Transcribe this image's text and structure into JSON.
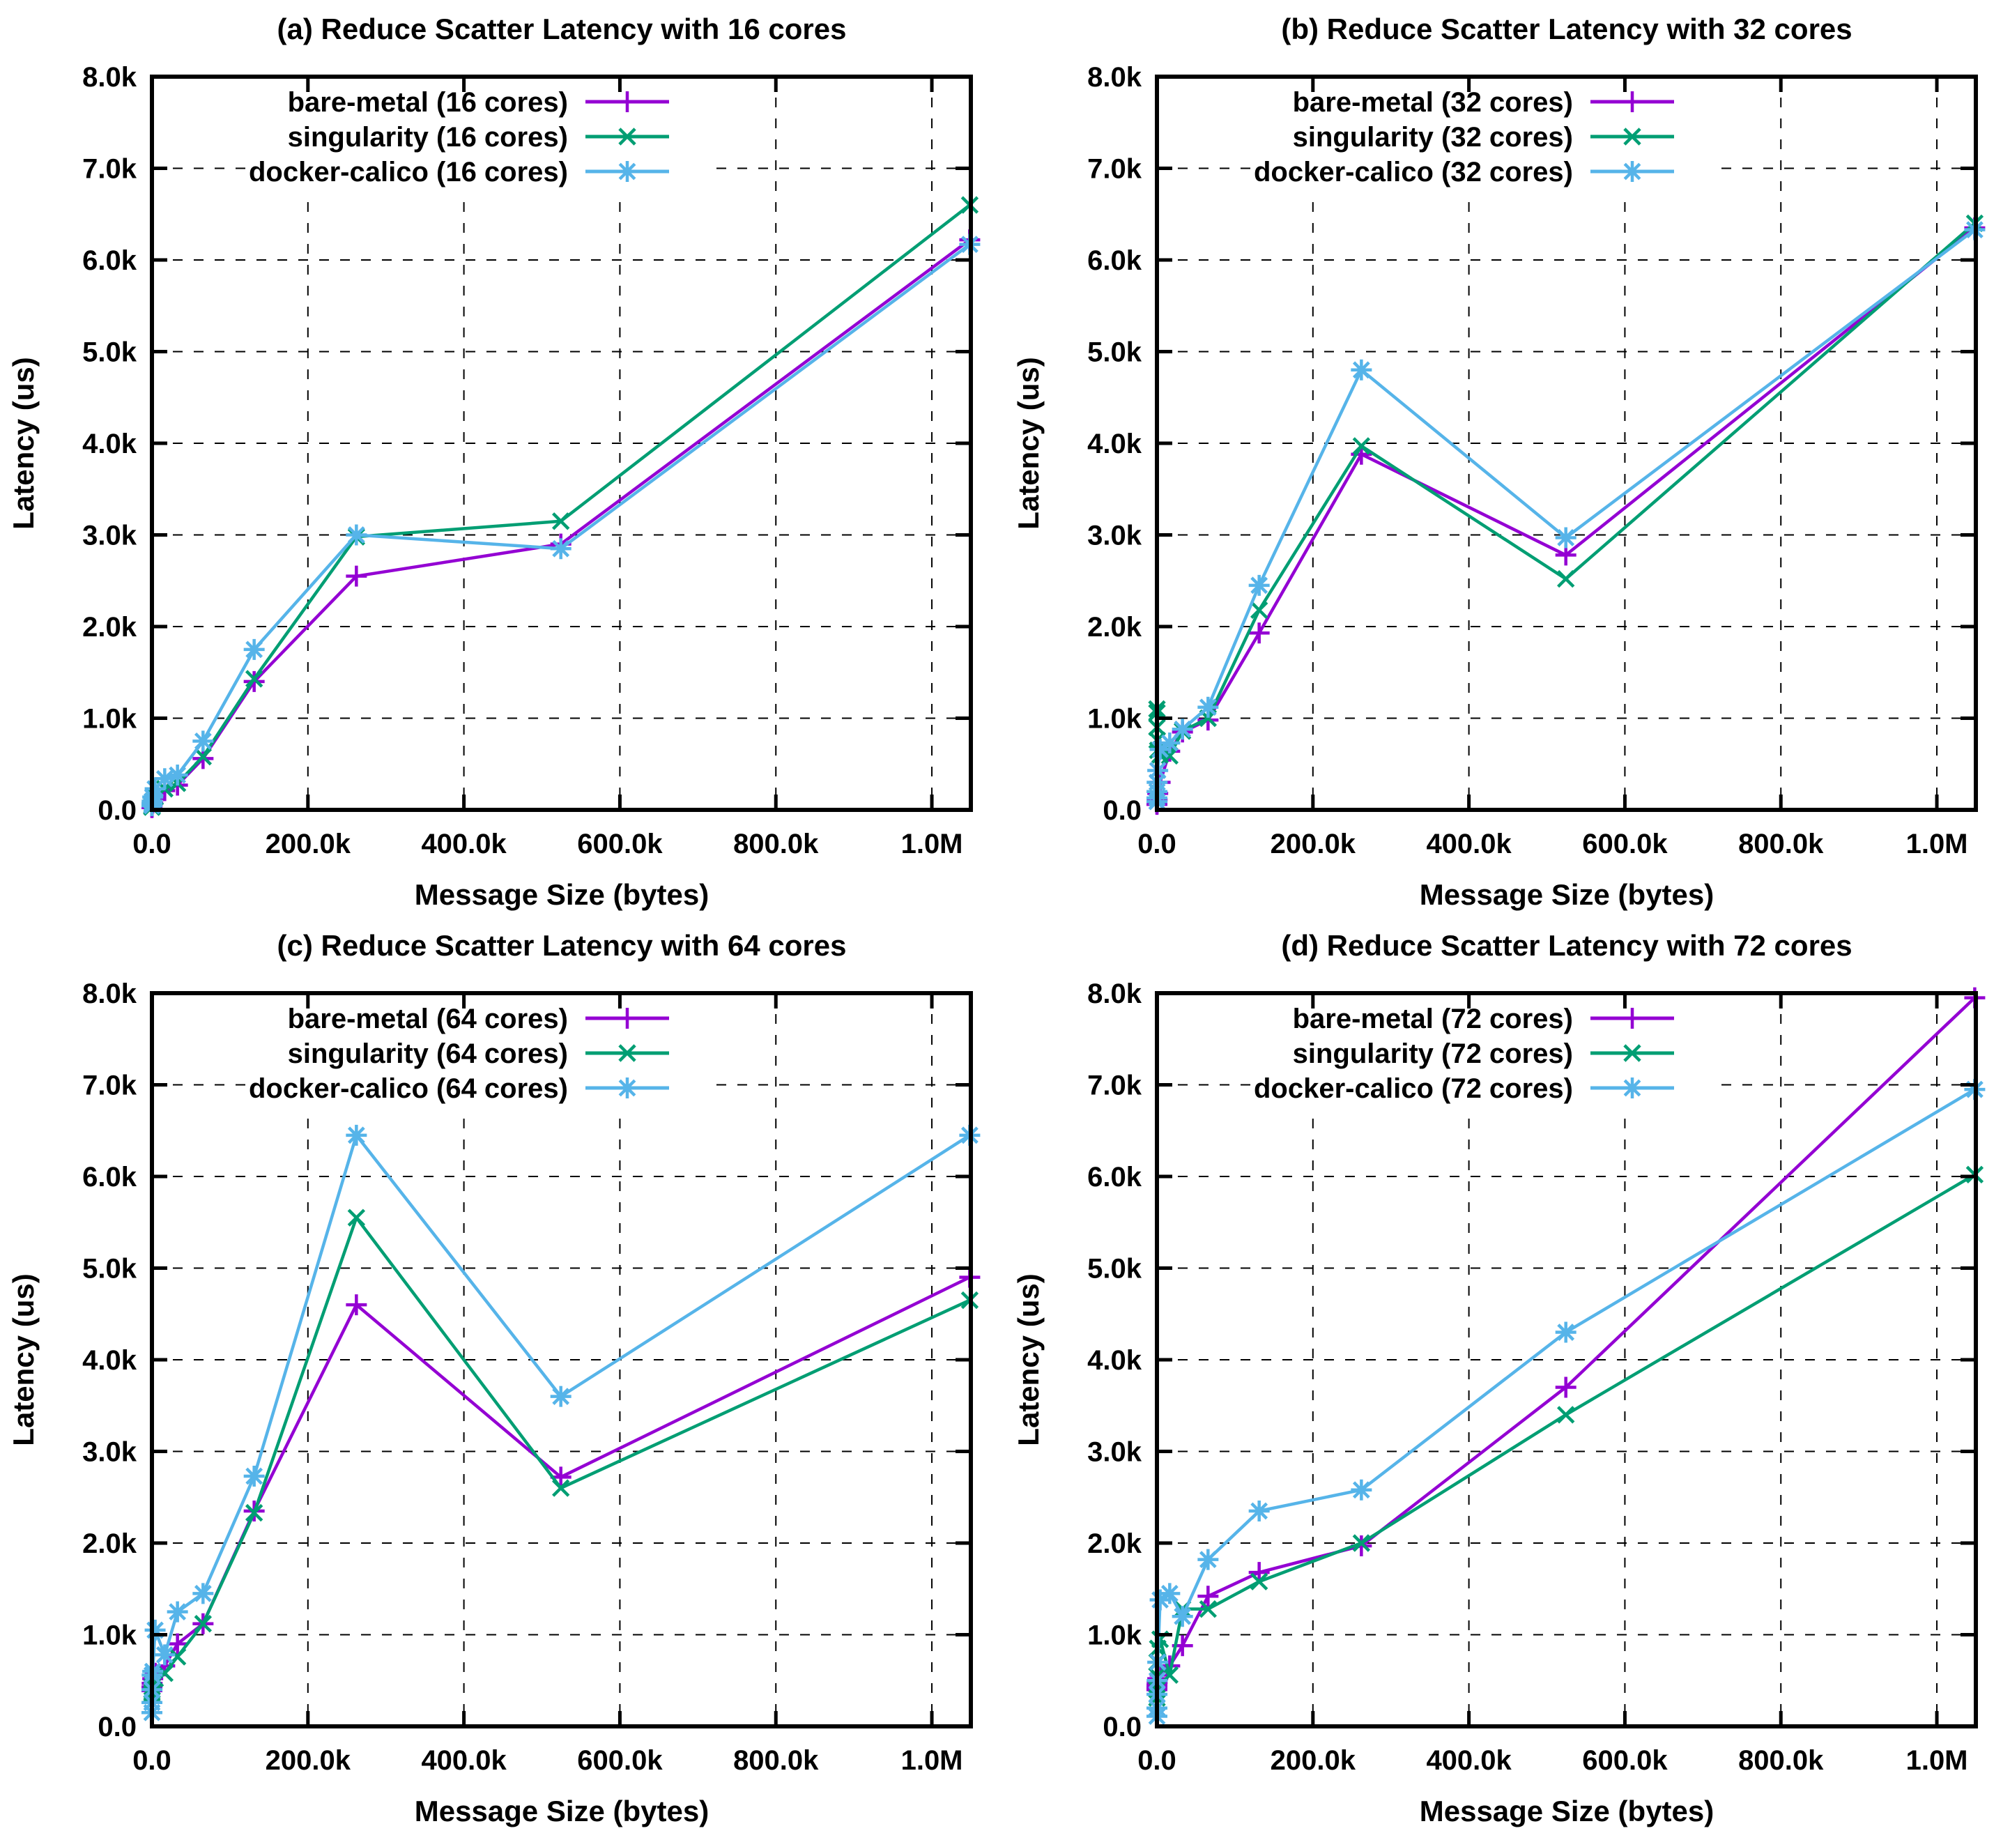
{
  "page": {
    "background": "#ffffff",
    "figure_kind": "gnuplot 2x2 latency benchmark figure"
  },
  "colors": {
    "bare_metal": "#9400d3",
    "singularity": "#009e73",
    "docker_calico": "#56b4e9",
    "grid": "#000000",
    "text": "#000000"
  },
  "axes_shared": {
    "xticks": [
      {
        "value": 0,
        "label": "0.0"
      },
      {
        "value": 200000,
        "label": "200.0k"
      },
      {
        "value": 400000,
        "label": "400.0k"
      },
      {
        "value": 600000,
        "label": "600.0k"
      },
      {
        "value": 800000,
        "label": "800.0k"
      },
      {
        "value": 1000000,
        "label": "1.0M"
      }
    ],
    "yticks": [
      {
        "value": 0,
        "label": "0.0"
      },
      {
        "value": 1000,
        "label": "1.0k"
      },
      {
        "value": 2000,
        "label": "2.0k"
      },
      {
        "value": 3000,
        "label": "3.0k"
      },
      {
        "value": 4000,
        "label": "4.0k"
      },
      {
        "value": 5000,
        "label": "5.0k"
      },
      {
        "value": 6000,
        "label": "6.0k"
      },
      {
        "value": 7000,
        "label": "7.0k"
      },
      {
        "value": 8000,
        "label": "8.0k"
      }
    ]
  },
  "chart_data": [
    {
      "type": "line",
      "title": "(a) Reduce Scatter Latency with 16 cores",
      "xlabel": "Message Size (bytes)",
      "ylabel": "Latency (us)",
      "xlim": [
        0,
        1050000
      ],
      "ylim": [
        0,
        8000
      ],
      "grid": true,
      "legend_position": "top-center-inside",
      "x": [
        4,
        16,
        64,
        256,
        1024,
        4096,
        16384,
        32768,
        65536,
        131072,
        262144,
        524288,
        1048576
      ],
      "series": [
        {
          "name": "bare-metal (16 cores)",
          "color": "#9400d3",
          "marker": "plus",
          "values": [
            25,
            30,
            38,
            50,
            75,
            120,
            210,
            270,
            560,
            1400,
            2550,
            2900,
            6220
          ]
        },
        {
          "name": "singularity (16 cores)",
          "color": "#009e73",
          "marker": "cross",
          "values": [
            30,
            36,
            45,
            60,
            90,
            140,
            230,
            290,
            580,
            1430,
            2980,
            3150,
            6600
          ]
        },
        {
          "name": "docker-calico (16 cores)",
          "color": "#56b4e9",
          "marker": "asterisk",
          "values": [
            45,
            55,
            70,
            95,
            140,
            230,
            340,
            380,
            750,
            1750,
            3000,
            2850,
            6170
          ]
        }
      ]
    },
    {
      "type": "line",
      "title": "(b) Reduce Scatter Latency with 32 cores",
      "xlabel": "Message Size (bytes)",
      "ylabel": "Latency (us)",
      "xlim": [
        0,
        1050000
      ],
      "ylim": [
        0,
        8000
      ],
      "grid": true,
      "legend_position": "top-center-inside",
      "x": [
        4,
        16,
        64,
        256,
        1024,
        4096,
        16384,
        32768,
        65536,
        131072,
        262144,
        524288,
        1048576
      ],
      "series": [
        {
          "name": "bare-metal (32 cores)",
          "color": "#9400d3",
          "marker": "plus",
          "values": [
            60,
            70,
            85,
            110,
            180,
            300,
            640,
            850,
            980,
            1930,
            3880,
            2780,
            6350
          ]
        },
        {
          "name": "singularity (32 cores)",
          "color": "#009e73",
          "marker": "cross",
          "values": [
            1100,
            1060,
            900,
            760,
            650,
            600,
            590,
            860,
            1000,
            2180,
            3970,
            2520,
            6400
          ]
        },
        {
          "name": "docker-calico (32 cores)",
          "color": "#56b4e9",
          "marker": "asterisk",
          "values": [
            90,
            130,
            200,
            300,
            430,
            660,
            730,
            880,
            1120,
            2450,
            4800,
            2970,
            6330
          ]
        }
      ]
    },
    {
      "type": "line",
      "title": "(c) Reduce Scatter Latency with 64 cores",
      "xlabel": "Message Size (bytes)",
      "ylabel": "Latency (us)",
      "xlim": [
        0,
        1050000
      ],
      "ylim": [
        0,
        8000
      ],
      "grid": true,
      "legend_position": "top-center-inside",
      "x": [
        4,
        16,
        64,
        256,
        1024,
        4096,
        16384,
        32768,
        65536,
        131072,
        262144,
        524288,
        1048576
      ],
      "series": [
        {
          "name": "bare-metal (64 cores)",
          "color": "#9400d3",
          "marker": "plus",
          "values": [
            390,
            410,
            430,
            470,
            520,
            580,
            660,
            900,
            1120,
            2350,
            4600,
            2720,
            4900
          ]
        },
        {
          "name": "singularity (64 cores)",
          "color": "#009e73",
          "marker": "cross",
          "values": [
            350,
            370,
            395,
            430,
            470,
            520,
            580,
            760,
            1120,
            2330,
            5550,
            2600,
            4650
          ]
        },
        {
          "name": "docker-calico (64 cores)",
          "color": "#56b4e9",
          "marker": "asterisk",
          "values": [
            150,
            260,
            400,
            560,
            600,
            1050,
            780,
            1250,
            1450,
            2730,
            6450,
            3600,
            6450
          ]
        }
      ]
    },
    {
      "type": "line",
      "title": "(d) Reduce Scatter Latency with 72 cores",
      "xlabel": "Message Size (bytes)",
      "ylabel": "Latency (us)",
      "xlim": [
        0,
        1050000
      ],
      "ylim": [
        0,
        8000
      ],
      "grid": true,
      "legend_position": "top-center-inside",
      "x": [
        4,
        16,
        64,
        256,
        1024,
        4096,
        16384,
        32768,
        65536,
        131072,
        262144,
        524288,
        1048576
      ],
      "series": [
        {
          "name": "bare-metal (72 cores)",
          "color": "#9400d3",
          "marker": "plus",
          "values": [
            400,
            420,
            450,
            480,
            520,
            560,
            660,
            880,
            1420,
            1680,
            1970,
            3700,
            7950
          ]
        },
        {
          "name": "singularity (72 cores)",
          "color": "#009e73",
          "marker": "cross",
          "values": [
            310,
            400,
            550,
            700,
            850,
            950,
            560,
            1280,
            1280,
            1580,
            2000,
            3400,
            6020
          ]
        },
        {
          "name": "docker-calico (72 cores)",
          "color": "#56b4e9",
          "marker": "asterisk",
          "values": [
            110,
            200,
            350,
            500,
            700,
            1380,
            1450,
            1200,
            1820,
            2350,
            2580,
            4300,
            6950
          ]
        }
      ]
    }
  ]
}
